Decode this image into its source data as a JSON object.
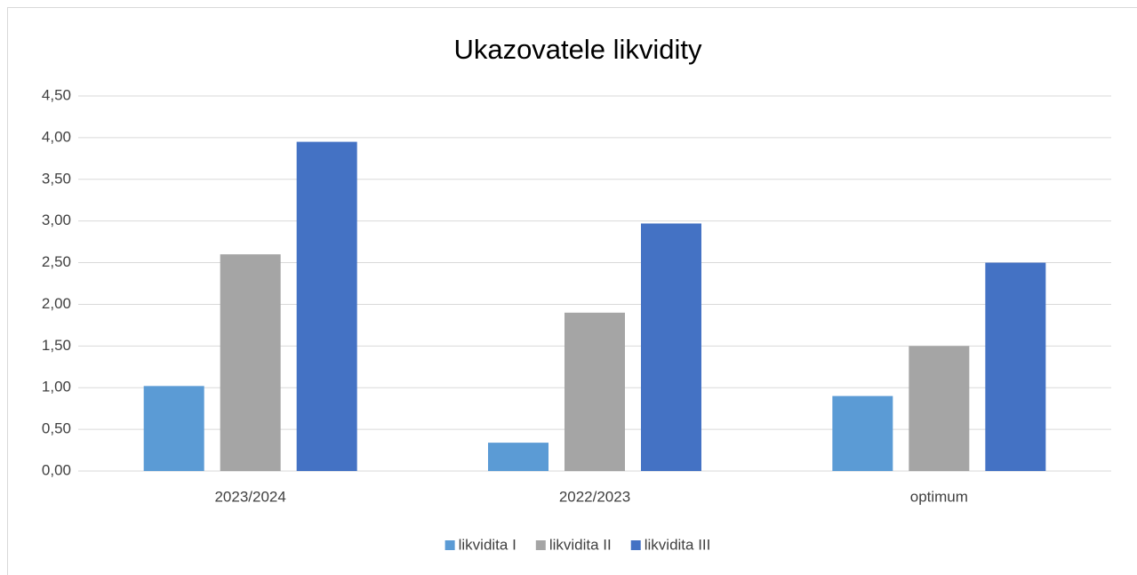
{
  "chart_data": {
    "type": "bar",
    "title": "Ukazovatele likvidity",
    "categories": [
      "2023/2024",
      "2022/2023",
      "optimum"
    ],
    "series": [
      {
        "name": "likvidita I",
        "color": "#5b9bd5",
        "values": [
          1.02,
          0.34,
          0.9
        ]
      },
      {
        "name": "likvidita II",
        "color": "#a5a5a5",
        "values": [
          2.6,
          1.9,
          1.5
        ]
      },
      {
        "name": "likvidita III",
        "color": "#4472c4",
        "values": [
          3.95,
          2.97,
          2.5
        ]
      }
    ],
    "ylim": [
      0,
      4.5
    ],
    "yticks": [
      {
        "value": 0,
        "label": "0,00"
      },
      {
        "value": 0.5,
        "label": "0,50"
      },
      {
        "value": 1,
        "label": "1,00"
      },
      {
        "value": 1.5,
        "label": "1,50"
      },
      {
        "value": 2,
        "label": "2,00"
      },
      {
        "value": 2.5,
        "label": "2,50"
      },
      {
        "value": 3,
        "label": "3,00"
      },
      {
        "value": 3.5,
        "label": "3,50"
      },
      {
        "value": 4,
        "label": "4,00"
      },
      {
        "value": 4.5,
        "label": "4,50"
      }
    ],
    "grid": true,
    "legend": "bottom"
  }
}
